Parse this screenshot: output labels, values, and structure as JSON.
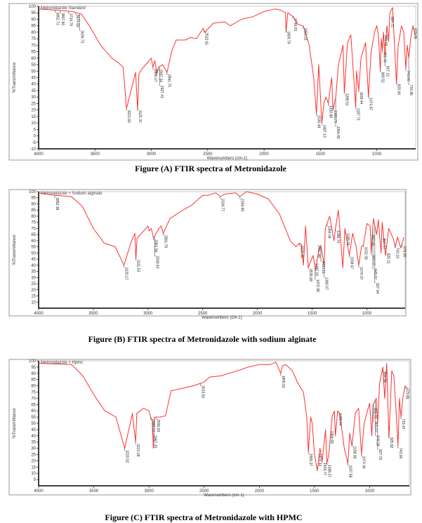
{
  "chart_data": [
    {
      "type": "line",
      "title": "Figure (A) FTIR spectra of  Metronidazole",
      "legend": "Metronidazole Standard",
      "xlabel": "Wavenumbers (cm-1)",
      "ylabel": "%Transmittance",
      "xlim": [
        4000,
        655
      ],
      "ylim": [
        -10,
        100
      ],
      "xticks": [
        4000,
        3500,
        3000,
        2500,
        2000,
        1500,
        1000
      ],
      "yticks": [
        -10,
        -5,
        0,
        5,
        10,
        15,
        20,
        25,
        30,
        35,
        40,
        45,
        50,
        55,
        60,
        65,
        70,
        75,
        80,
        85,
        90,
        95,
        100
      ],
      "color": "#ff3030",
      "x": [
        4000,
        3850,
        3700,
        3620,
        3550,
        3450,
        3350,
        3300,
        3250,
        3221,
        3180,
        3140,
        3122,
        3110,
        3080,
        3020,
        3000,
        2986,
        2970,
        2950,
        2937,
        2900,
        2861,
        2820,
        2780,
        2700,
        2650,
        2600,
        2540,
        2525,
        2450,
        2350,
        2300,
        2200,
        2100,
        2000,
        1900,
        1850,
        1810,
        1805,
        1790,
        1740,
        1700,
        1653,
        1600,
        1560,
        1535,
        1515,
        1487,
        1470,
        1450,
        1430,
        1400,
        1388,
        1364,
        1340,
        1300,
        1288,
        1260,
        1230,
        1187,
        1180,
        1160,
        1140,
        1100,
        1074,
        1050,
        1020,
        1000,
        985,
        969,
        960,
        950,
        940,
        927,
        910,
        895,
        884,
        860,
        825,
        810,
        780,
        760,
        743,
        730,
        716,
        700,
        679,
        660
      ],
      "y": [
        98,
        97,
        96,
        94,
        85,
        70,
        60,
        57,
        53,
        21,
        35,
        49,
        20,
        48,
        52,
        58,
        60,
        53,
        58,
        48,
        53,
        55,
        49,
        65,
        74,
        74,
        76,
        75,
        83,
        80,
        87,
        88,
        85,
        90,
        92,
        96,
        98,
        97,
        95,
        80,
        95,
        92,
        86,
        85,
        70,
        45,
        17,
        55,
        10,
        25,
        30,
        25,
        45,
        20,
        30,
        55,
        70,
        33,
        72,
        78,
        22,
        50,
        35,
        60,
        72,
        30,
        65,
        80,
        85,
        78,
        50,
        75,
        66,
        80,
        62,
        85,
        73,
        95,
        99,
        40,
        70,
        85,
        80,
        52,
        70,
        60,
        75,
        85,
        78
      ],
      "peaks": [
        "3852.71",
        "3807.60",
        "3734.79",
        "3674.60",
        "3636.73",
        "3221.60",
        "3121.37",
        "2986.17",
        "2937.34",
        "2927.41",
        "2861.75",
        "2532.61",
        "1805.79",
        "1746.03",
        "1653.21",
        "1535.48",
        "1487.13",
        "1430.88",
        "1388.73",
        "1364.65",
        "1288.51",
        "1187.71",
        "1159.44",
        "1074.67",
        "969.52",
        "950.46",
        "940.42",
        "927.12",
        "884.71",
        "825.94",
        "743.06",
        "716.95",
        "679.86"
      ]
    },
    {
      "type": "line",
      "title": "Figure (B) FTIR spectra of  Metronidazole with sodium alginate",
      "legend": "Metronidazole + Sodium alginate",
      "xlabel": "Wavenumbers (cm-1)",
      "ylabel": "%Transmittance",
      "xlim": [
        4000,
        650
      ],
      "ylim": [
        5,
        100
      ],
      "xticks": [
        4000,
        3500,
        3000,
        2500,
        2000,
        1500,
        1000
      ],
      "yticks": [
        10,
        15,
        20,
        25,
        30,
        35,
        40,
        45,
        50,
        55,
        60,
        65,
        70,
        75,
        80,
        85,
        90,
        95,
        100
      ],
      "color": "#ff3030",
      "x": [
        4000,
        3850,
        3700,
        3600,
        3500,
        3400,
        3300,
        3220,
        3150,
        3120,
        3111,
        3100,
        3000,
        2990,
        2970,
        2950,
        2900,
        2880,
        2861,
        2800,
        2700,
        2600,
        2500,
        2450,
        2380,
        2340,
        2300,
        2200,
        2160,
        2100,
        2000,
        1900,
        1800,
        1700,
        1650,
        1616,
        1600,
        1580,
        1560,
        1535,
        1510,
        1490,
        1470,
        1440,
        1420,
        1390,
        1380,
        1340,
        1300,
        1287,
        1260,
        1220,
        1200,
        1160,
        1130,
        1100,
        1074,
        1050,
        1030,
        1000,
        970,
        960,
        940,
        910,
        895,
        870,
        860,
        830,
        800,
        760,
        740,
        720,
        690,
        660
      ],
      "y": [
        99,
        97,
        96,
        88,
        70,
        58,
        55,
        40,
        60,
        66,
        45,
        62,
        72,
        68,
        70,
        62,
        70,
        72,
        66,
        78,
        84,
        89,
        97,
        97,
        99,
        96,
        98,
        99,
        96,
        100,
        98,
        94,
        82,
        60,
        55,
        58,
        57,
        40,
        72,
        38,
        44,
        48,
        36,
        52,
        56,
        40,
        70,
        80,
        60,
        70,
        85,
        38,
        70,
        48,
        66,
        56,
        40,
        55,
        57,
        74,
        72,
        50,
        78,
        65,
        77,
        50,
        75,
        48,
        70,
        62,
        55,
        63,
        54,
        63
      ],
      "peaks": [
        "3852.38",
        "3220.17",
        "3111.53",
        "2951.56",
        "2939.40",
        "2861.79",
        "2339.77",
        "2159.99",
        "1616.46",
        "1535.68",
        "1482.29",
        "1472.98",
        "1457.48",
        "1420.11",
        "1390.07",
        "1364.08",
        "1286.74",
        "1196.01",
        "1158.67",
        "1074.37",
        "1032.39",
        "967.46",
        "960.07",
        "945.07",
        "927.34",
        "864.57",
        "825.11",
        "743.16",
        "679.90"
      ]
    },
    {
      "type": "line",
      "title": "Figure (C) FTIR spectra of  Metronidazole with HPMC",
      "legend": "Metronidazole + Hpmc",
      "xlabel": "Wavenumbers (cm-1)",
      "ylabel": "%Transmittance",
      "xlim": [
        4000,
        640
      ],
      "ylim": [
        0,
        100
      ],
      "xticks": [
        4000,
        3500,
        3000,
        2500,
        2000,
        1500,
        1000
      ],
      "yticks": [
        5,
        10,
        15,
        20,
        25,
        30,
        35,
        40,
        45,
        50,
        55,
        60,
        65,
        70,
        75,
        80,
        85,
        90,
        95,
        100
      ],
      "color": "#ff3030",
      "x": [
        4000,
        3700,
        3600,
        3500,
        3400,
        3300,
        3220,
        3150,
        3121,
        3110,
        3050,
        3000,
        2985,
        2970,
        2960,
        2950,
        2900,
        2850,
        2800,
        2700,
        2600,
        2533,
        2500,
        2450,
        2350,
        2200,
        2100,
        2000,
        1900,
        1850,
        1806,
        1790,
        1760,
        1700,
        1650,
        1600,
        1570,
        1555,
        1535,
        1520,
        1500,
        1474,
        1450,
        1430,
        1400,
        1388,
        1370,
        1340,
        1320,
        1310,
        1290,
        1270,
        1230,
        1197,
        1180,
        1160,
        1130,
        1100,
        1074,
        1050,
        1020,
        1000,
        980,
        969,
        940,
        927,
        910,
        880,
        864,
        845,
        825,
        800,
        780,
        760,
        743,
        730,
        716,
        700,
        679,
        660
      ],
      "y": [
        98,
        97,
        88,
        73,
        60,
        55,
        30,
        58,
        35,
        58,
        62,
        60,
        55,
        52,
        30,
        55,
        55,
        56,
        76,
        78,
        80,
        82,
        83,
        87,
        88,
        92,
        95,
        97,
        97,
        99,
        90,
        96,
        97,
        92,
        82,
        75,
        55,
        27,
        55,
        50,
        25,
        12,
        30,
        20,
        45,
        18,
        25,
        55,
        60,
        40,
        60,
        58,
        30,
        18,
        42,
        32,
        58,
        62,
        25,
        50,
        60,
        66,
        40,
        65,
        70,
        50,
        82,
        95,
        70,
        98,
        38,
        92,
        88,
        60,
        32,
        70,
        55,
        70,
        80,
        78
      ],
      "peaks": [
        "3220.52",
        "3121.28",
        "2985.14",
        "2967.25",
        "2936.63",
        "2533.50",
        "1805.91",
        "1555.27",
        "1474.12",
        "1429.77",
        "1388.27",
        "1364.69",
        "1288.44",
        "1197.58",
        "1158.38",
        "1074.34",
        "969.40",
        "966.02",
        "949.29",
        "927.76",
        "884.58",
        "825.82",
        "743.06",
        "716.42",
        "679.85"
      ]
    }
  ]
}
